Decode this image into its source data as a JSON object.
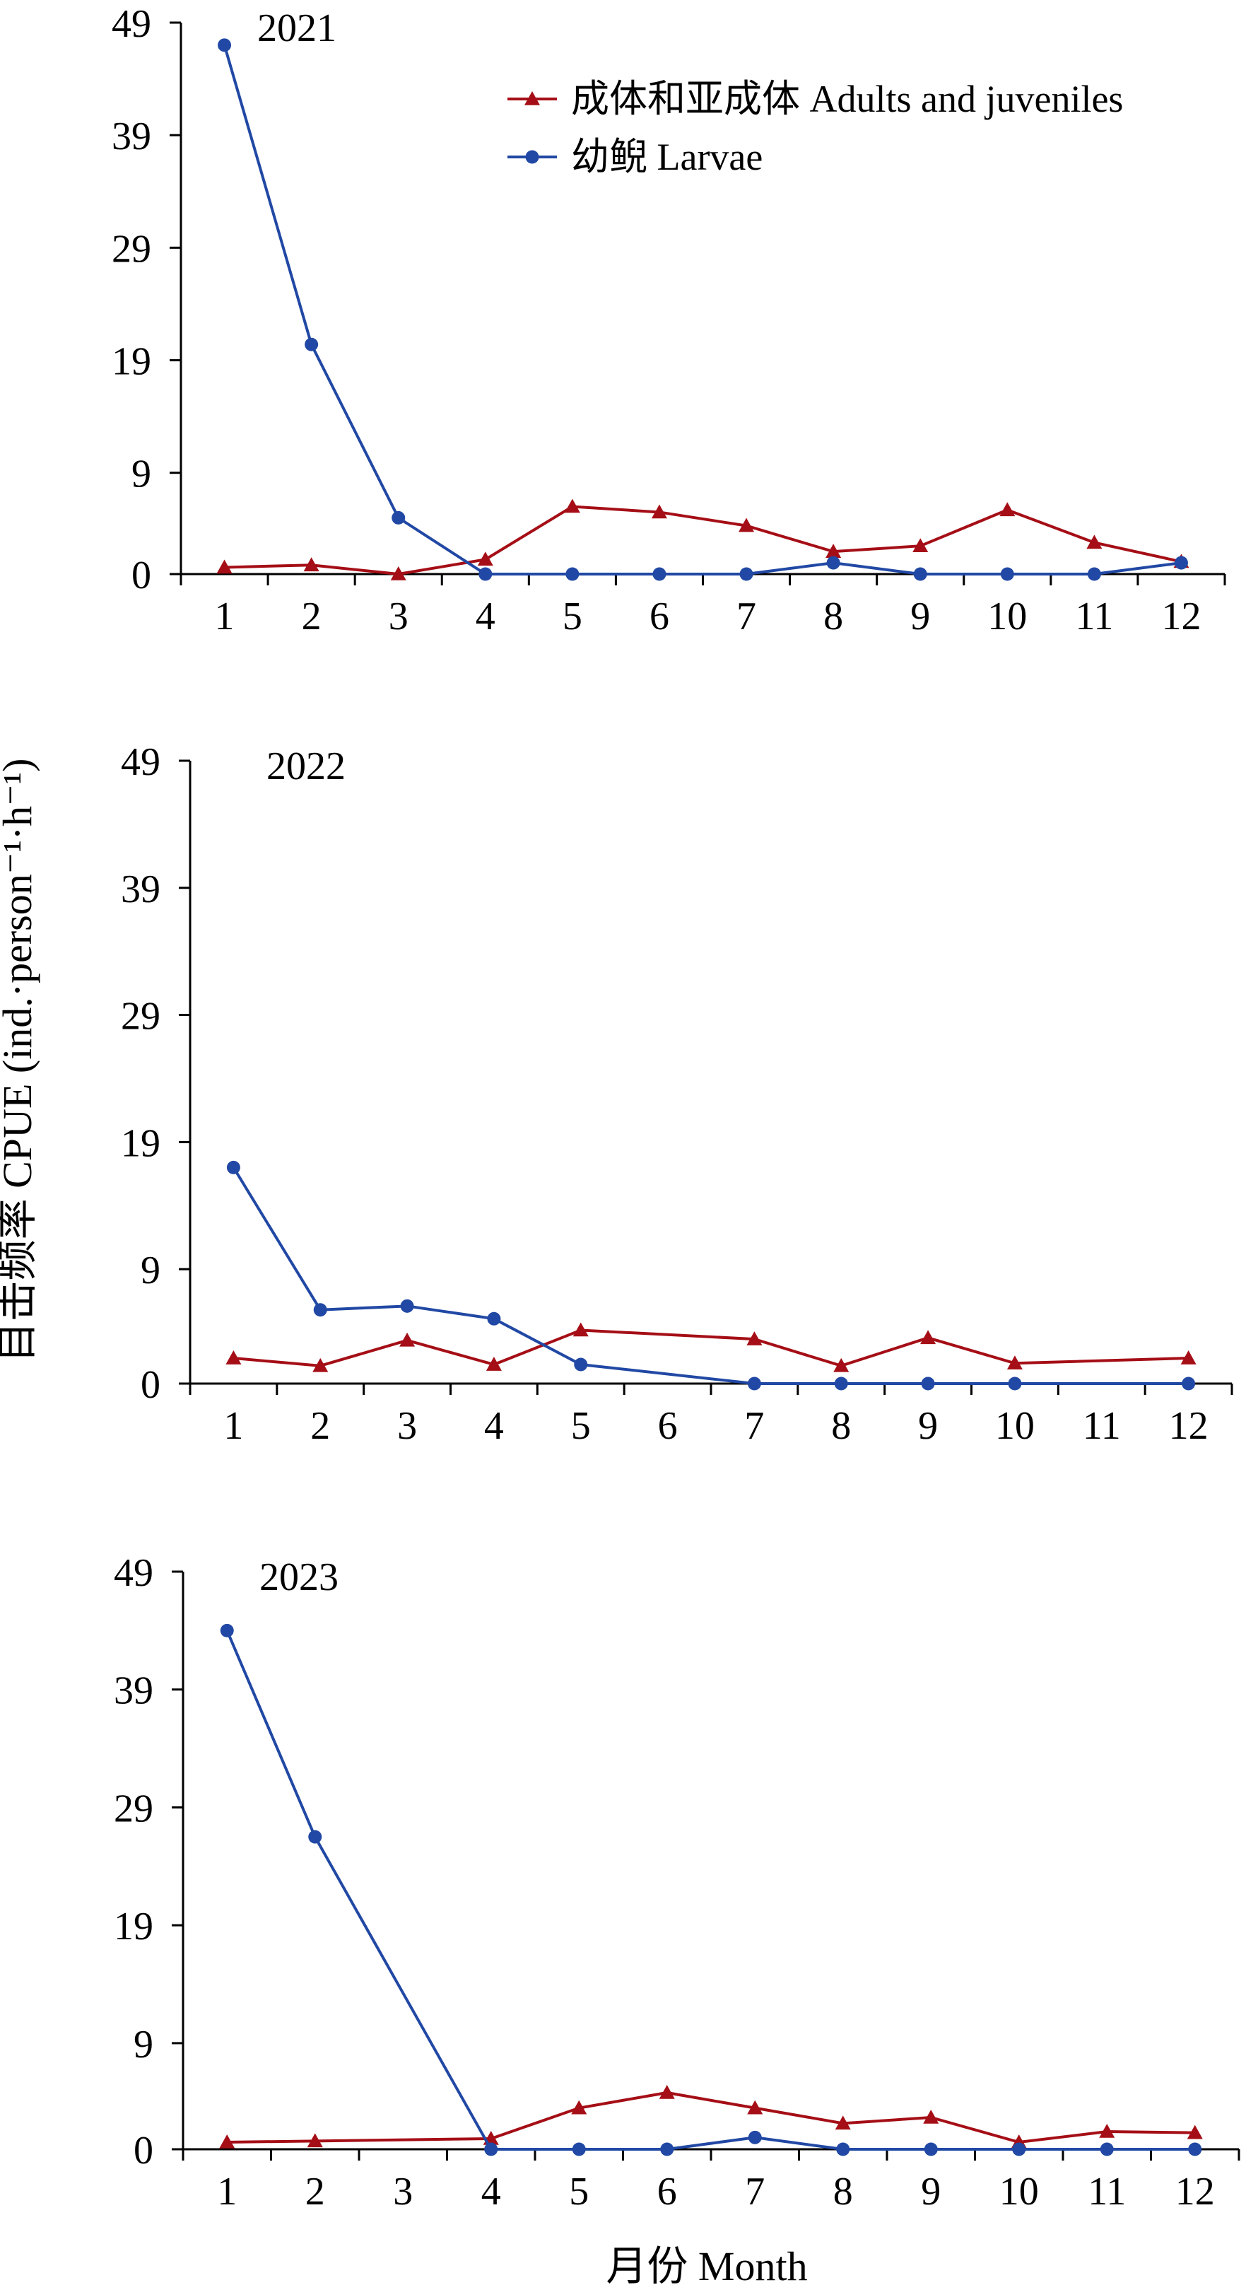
{
  "y_axis_title": "目击频率 CPUE (ind.·person⁻¹·h⁻¹)",
  "x_axis_title": "月份 Month",
  "colors": {
    "adults": "#a50e16",
    "larvae": "#2148a4",
    "axis": "#000000"
  },
  "chart_data": [
    {
      "type": "line",
      "panel_label": "2021",
      "x": [
        1,
        2,
        3,
        4,
        5,
        6,
        7,
        8,
        9,
        10,
        11,
        12
      ],
      "y_ticks": [
        0,
        9,
        19,
        29,
        39,
        49
      ],
      "ylim": [
        0,
        49
      ],
      "legend": {
        "placement": "top-right",
        "entries": [
          "成体和亚成体 Adults and juveniles",
          "幼鲵 Larvae"
        ]
      },
      "series": [
        {
          "name": "成体和亚成体 Adults and juveniles",
          "marker": "triangle",
          "values": [
            0.6,
            0.8,
            0.0,
            1.3,
            6.0,
            5.5,
            4.3,
            2.0,
            2.5,
            5.7,
            2.8,
            1.1
          ]
        },
        {
          "name": "幼鲵 Larvae",
          "marker": "circle",
          "values": [
            47.0,
            20.4,
            5.0,
            0.0,
            0.0,
            0.0,
            0.0,
            1.0,
            0.0,
            0.0,
            0.0,
            1.0
          ]
        }
      ]
    },
    {
      "type": "line",
      "panel_label": "2022",
      "x": [
        1,
        2,
        3,
        4,
        5,
        6,
        7,
        8,
        9,
        10,
        11,
        12
      ],
      "y_ticks": [
        0,
        9,
        19,
        29,
        39,
        49
      ],
      "ylim": [
        0,
        49
      ],
      "series": [
        {
          "name": "成体和亚成体 Adults and juveniles",
          "marker": "triangle",
          "values": [
            2.0,
            1.4,
            3.4,
            1.5,
            4.2,
            null,
            3.5,
            1.4,
            3.6,
            1.6,
            null,
            2.0
          ]
        },
        {
          "name": "幼鲵 Larvae",
          "marker": "circle",
          "values": [
            17.0,
            5.8,
            6.1,
            5.1,
            1.5,
            null,
            0.0,
            0.0,
            0.0,
            0.0,
            null,
            0.0
          ]
        }
      ]
    },
    {
      "type": "line",
      "panel_label": "2023",
      "x": [
        1,
        2,
        3,
        4,
        5,
        6,
        7,
        8,
        9,
        10,
        11,
        12
      ],
      "y_ticks": [
        0,
        9,
        19,
        29,
        39,
        49
      ],
      "ylim": [
        0,
        49
      ],
      "series": [
        {
          "name": "成体和亚成体 Adults and juveniles",
          "marker": "triangle",
          "values": [
            0.6,
            0.7,
            null,
            0.9,
            3.5,
            4.8,
            3.5,
            2.2,
            2.7,
            0.6,
            1.5,
            1.4
          ]
        },
        {
          "name": "幼鲵 Larvae",
          "marker": "circle",
          "values": [
            44.0,
            26.5,
            null,
            0.0,
            0.0,
            0.0,
            1.0,
            0.0,
            0.0,
            0.0,
            0.0,
            0.0
          ]
        }
      ]
    }
  ]
}
